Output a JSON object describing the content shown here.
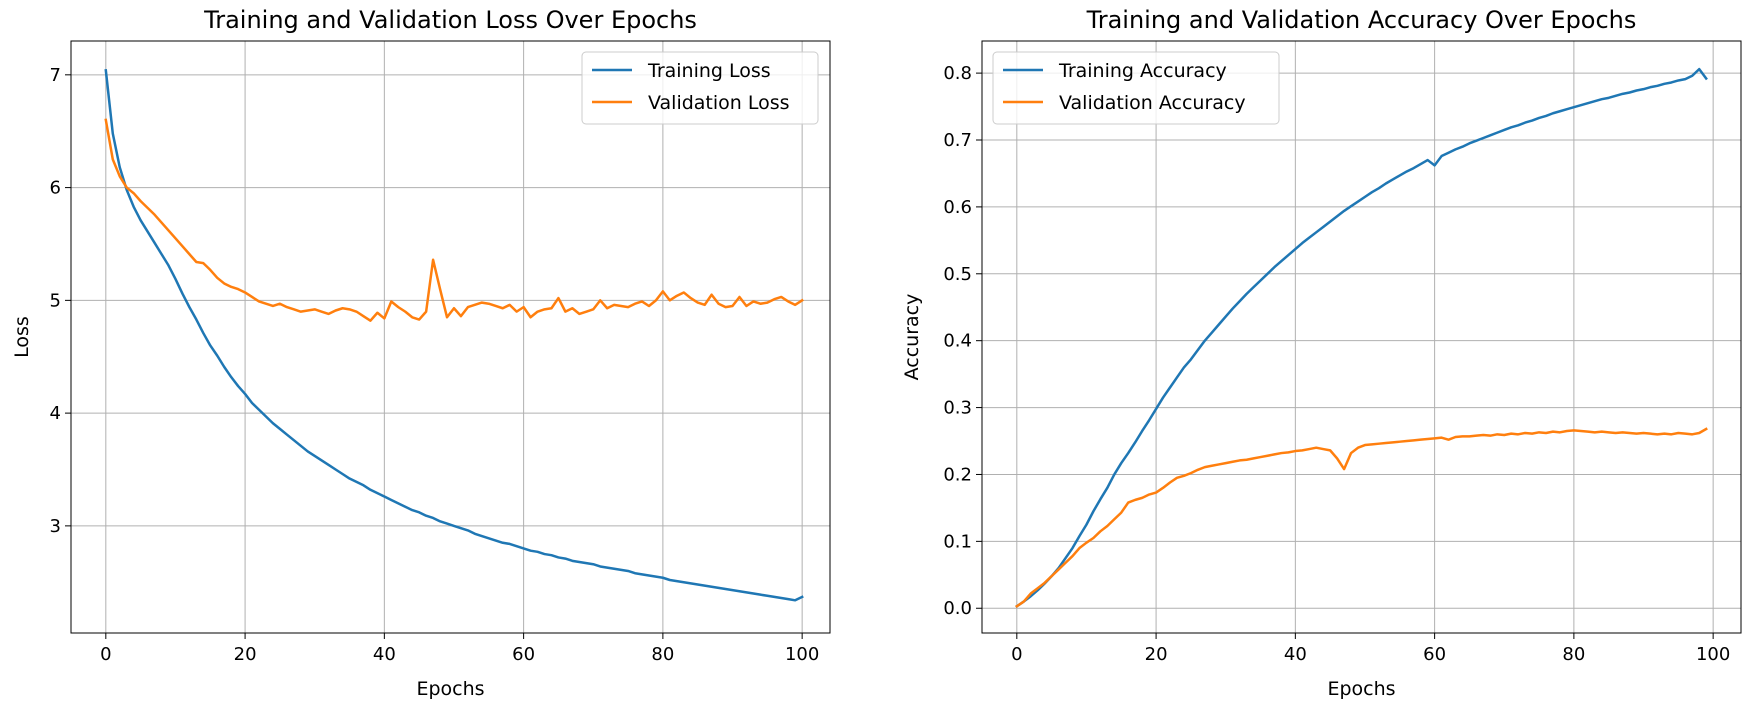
{
  "chart_data": [
    {
      "type": "line",
      "title": "Training and Validation Loss Over Epochs",
      "xlabel": "Epochs",
      "ylabel": "Loss",
      "xlim": [
        -5,
        104
      ],
      "ylim": [
        2.05,
        7.3
      ],
      "xticks": [
        0,
        20,
        40,
        60,
        80,
        100
      ],
      "yticks": [
        3,
        4,
        5,
        6,
        7
      ],
      "tick_decimals": 0,
      "grid": true,
      "legend_position": "upper right",
      "series": [
        {
          "name": "Training Loss",
          "color": "#1f77b4",
          "values": [
            7.04,
            6.48,
            6.18,
            5.98,
            5.83,
            5.71,
            5.61,
            5.51,
            5.41,
            5.31,
            5.19,
            5.06,
            4.94,
            4.83,
            4.71,
            4.6,
            4.51,
            4.41,
            4.32,
            4.24,
            4.17,
            4.09,
            4.03,
            3.97,
            3.91,
            3.86,
            3.81,
            3.76,
            3.71,
            3.66,
            3.62,
            3.58,
            3.54,
            3.5,
            3.46,
            3.42,
            3.39,
            3.36,
            3.32,
            3.29,
            3.26,
            3.23,
            3.2,
            3.17,
            3.14,
            3.12,
            3.09,
            3.07,
            3.04,
            3.02,
            3.0,
            2.98,
            2.96,
            2.93,
            2.91,
            2.89,
            2.87,
            2.85,
            2.84,
            2.82,
            2.8,
            2.78,
            2.77,
            2.75,
            2.74,
            2.72,
            2.71,
            2.69,
            2.68,
            2.67,
            2.66,
            2.64,
            2.63,
            2.62,
            2.61,
            2.6,
            2.58,
            2.57,
            2.56,
            2.55,
            2.54,
            2.52,
            2.51,
            2.5,
            2.49,
            2.48,
            2.47,
            2.46,
            2.45,
            2.44,
            2.43,
            2.42,
            2.41,
            2.4,
            2.39,
            2.38,
            2.37,
            2.36,
            2.35,
            2.34,
            2.37
          ]
        },
        {
          "name": "Validation Loss",
          "color": "#ff7f0e",
          "values": [
            6.6,
            6.25,
            6.1,
            6.0,
            5.95,
            5.88,
            5.82,
            5.76,
            5.69,
            5.62,
            5.55,
            5.48,
            5.41,
            5.34,
            5.33,
            5.27,
            5.2,
            5.15,
            5.12,
            5.1,
            5.07,
            5.03,
            4.99,
            4.97,
            4.95,
            4.97,
            4.94,
            4.92,
            4.9,
            4.91,
            4.92,
            4.9,
            4.88,
            4.91,
            4.93,
            4.92,
            4.9,
            4.86,
            4.82,
            4.89,
            4.84,
            4.99,
            4.94,
            4.9,
            4.85,
            4.83,
            4.9,
            5.36,
            5.1,
            4.85,
            4.93,
            4.86,
            4.94,
            4.96,
            4.98,
            4.97,
            4.95,
            4.93,
            4.96,
            4.9,
            4.94,
            4.85,
            4.9,
            4.92,
            4.93,
            5.02,
            4.9,
            4.93,
            4.88,
            4.9,
            4.92,
            5.0,
            4.93,
            4.96,
            4.95,
            4.94,
            4.97,
            4.99,
            4.95,
            5.0,
            5.08,
            5.0,
            5.04,
            5.07,
            5.02,
            4.98,
            4.96,
            5.05,
            4.97,
            4.94,
            4.95,
            5.03,
            4.95,
            4.99,
            4.97,
            4.98,
            5.01,
            5.03,
            4.99,
            4.96,
            5.0
          ]
        }
      ]
    },
    {
      "type": "line",
      "title": "Training and Validation Accuracy Over Epochs",
      "xlabel": "Epochs",
      "ylabel": "Accuracy",
      "xlim": [
        -5,
        104
      ],
      "ylim": [
        -0.037,
        0.848
      ],
      "xticks": [
        0,
        20,
        40,
        60,
        80,
        100
      ],
      "yticks": [
        0.0,
        0.1,
        0.2,
        0.3,
        0.4,
        0.5,
        0.6,
        0.7,
        0.8
      ],
      "tick_decimals": 1,
      "grid": true,
      "legend_position": "upper left",
      "series": [
        {
          "name": "Training Accuracy",
          "color": "#1f77b4",
          "values": [
            0.003,
            0.01,
            0.018,
            0.027,
            0.037,
            0.048,
            0.06,
            0.075,
            0.09,
            0.108,
            0.125,
            0.145,
            0.163,
            0.18,
            0.2,
            0.217,
            0.232,
            0.248,
            0.265,
            0.281,
            0.298,
            0.315,
            0.33,
            0.345,
            0.36,
            0.372,
            0.386,
            0.4,
            0.412,
            0.424,
            0.436,
            0.448,
            0.459,
            0.47,
            0.48,
            0.49,
            0.5,
            0.51,
            0.519,
            0.528,
            0.537,
            0.546,
            0.554,
            0.562,
            0.57,
            0.578,
            0.586,
            0.594,
            0.601,
            0.608,
            0.615,
            0.622,
            0.628,
            0.635,
            0.641,
            0.647,
            0.653,
            0.658,
            0.664,
            0.67,
            0.662,
            0.676,
            0.681,
            0.686,
            0.69,
            0.695,
            0.699,
            0.703,
            0.707,
            0.711,
            0.715,
            0.719,
            0.722,
            0.726,
            0.729,
            0.733,
            0.736,
            0.74,
            0.743,
            0.746,
            0.749,
            0.752,
            0.755,
            0.758,
            0.761,
            0.763,
            0.766,
            0.769,
            0.771,
            0.774,
            0.776,
            0.779,
            0.781,
            0.784,
            0.786,
            0.789,
            0.791,
            0.796,
            0.806,
            0.792
          ]
        },
        {
          "name": "Validation Accuracy",
          "color": "#ff7f0e",
          "values": [
            0.003,
            0.01,
            0.022,
            0.03,
            0.038,
            0.048,
            0.058,
            0.068,
            0.078,
            0.09,
            0.098,
            0.105,
            0.115,
            0.123,
            0.133,
            0.143,
            0.158,
            0.162,
            0.165,
            0.17,
            0.173,
            0.18,
            0.188,
            0.195,
            0.198,
            0.202,
            0.207,
            0.211,
            0.213,
            0.215,
            0.217,
            0.219,
            0.221,
            0.222,
            0.224,
            0.226,
            0.228,
            0.23,
            0.232,
            0.233,
            0.235,
            0.236,
            0.238,
            0.24,
            0.238,
            0.236,
            0.224,
            0.208,
            0.232,
            0.24,
            0.244,
            0.245,
            0.246,
            0.247,
            0.248,
            0.249,
            0.25,
            0.251,
            0.252,
            0.253,
            0.254,
            0.255,
            0.252,
            0.256,
            0.257,
            0.257,
            0.258,
            0.259,
            0.258,
            0.26,
            0.259,
            0.261,
            0.26,
            0.262,
            0.261,
            0.263,
            0.262,
            0.264,
            0.263,
            0.265,
            0.266,
            0.265,
            0.264,
            0.263,
            0.264,
            0.263,
            0.262,
            0.263,
            0.262,
            0.261,
            0.262,
            0.261,
            0.26,
            0.261,
            0.26,
            0.262,
            0.261,
            0.26,
            0.262,
            0.268
          ]
        }
      ]
    }
  ]
}
